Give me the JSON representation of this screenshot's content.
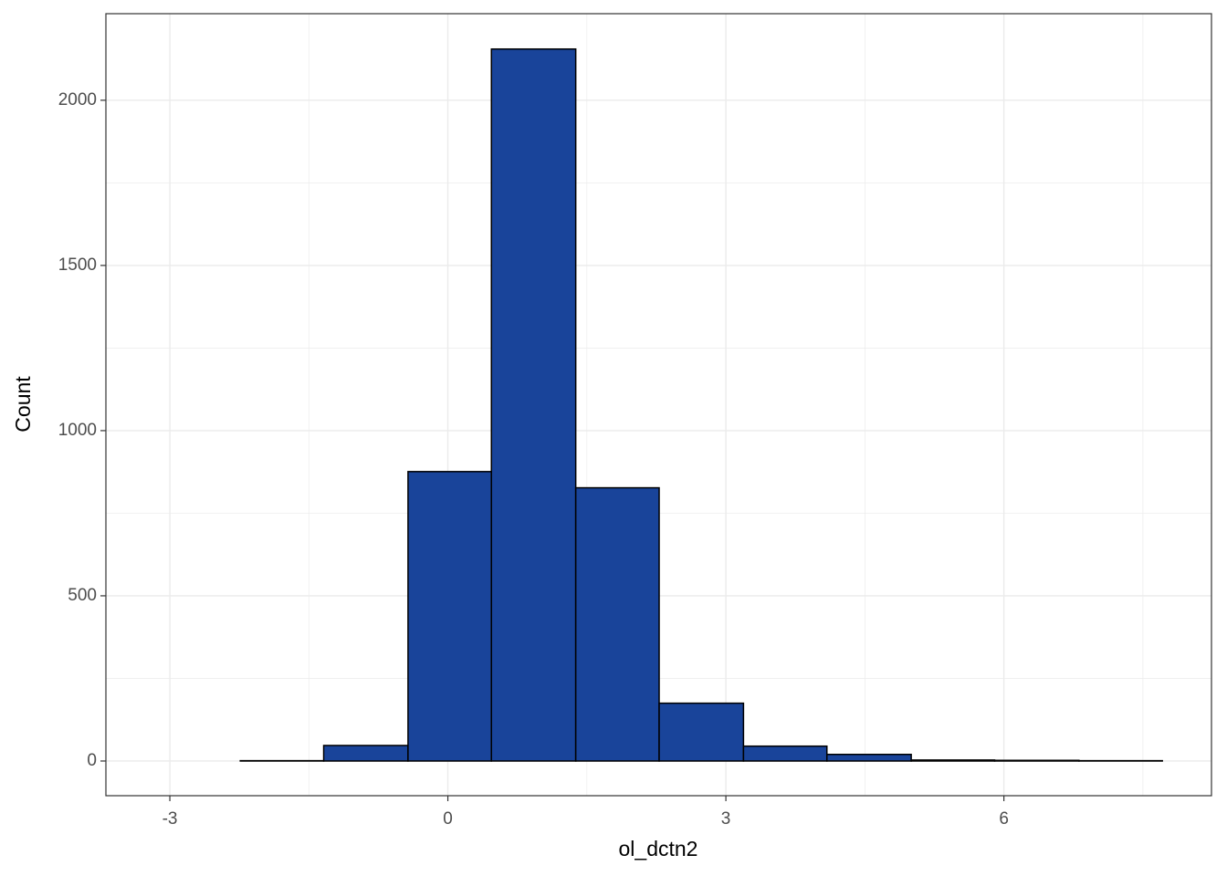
{
  "chart_data": {
    "type": "histogram",
    "x_label": "ol_dctn2",
    "y_label": "Count",
    "bins": [
      -3.15,
      -2.24,
      -1.34,
      -0.43,
      0.47,
      1.38,
      2.28,
      3.19,
      4.09,
      5.0,
      5.9,
      6.81,
      7.71
    ],
    "values": [
      0,
      1,
      47,
      876,
      2155,
      827,
      175,
      45,
      20,
      3,
      2,
      1
    ],
    "color": "#19449a",
    "edge_color": "#000000",
    "xlim": [
      -3.69,
      8.24
    ],
    "ylim": [
      -105,
      2262
    ],
    "xticks": [
      -3,
      0,
      3,
      6
    ],
    "yticks": [
      0,
      500,
      1000,
      1500,
      2000
    ],
    "x_minor_gridlines": [
      -1.5,
      1.5,
      4.5,
      7.5
    ],
    "y_minor_gridlines": [
      250,
      750,
      1250,
      1750
    ],
    "grid": true
  }
}
